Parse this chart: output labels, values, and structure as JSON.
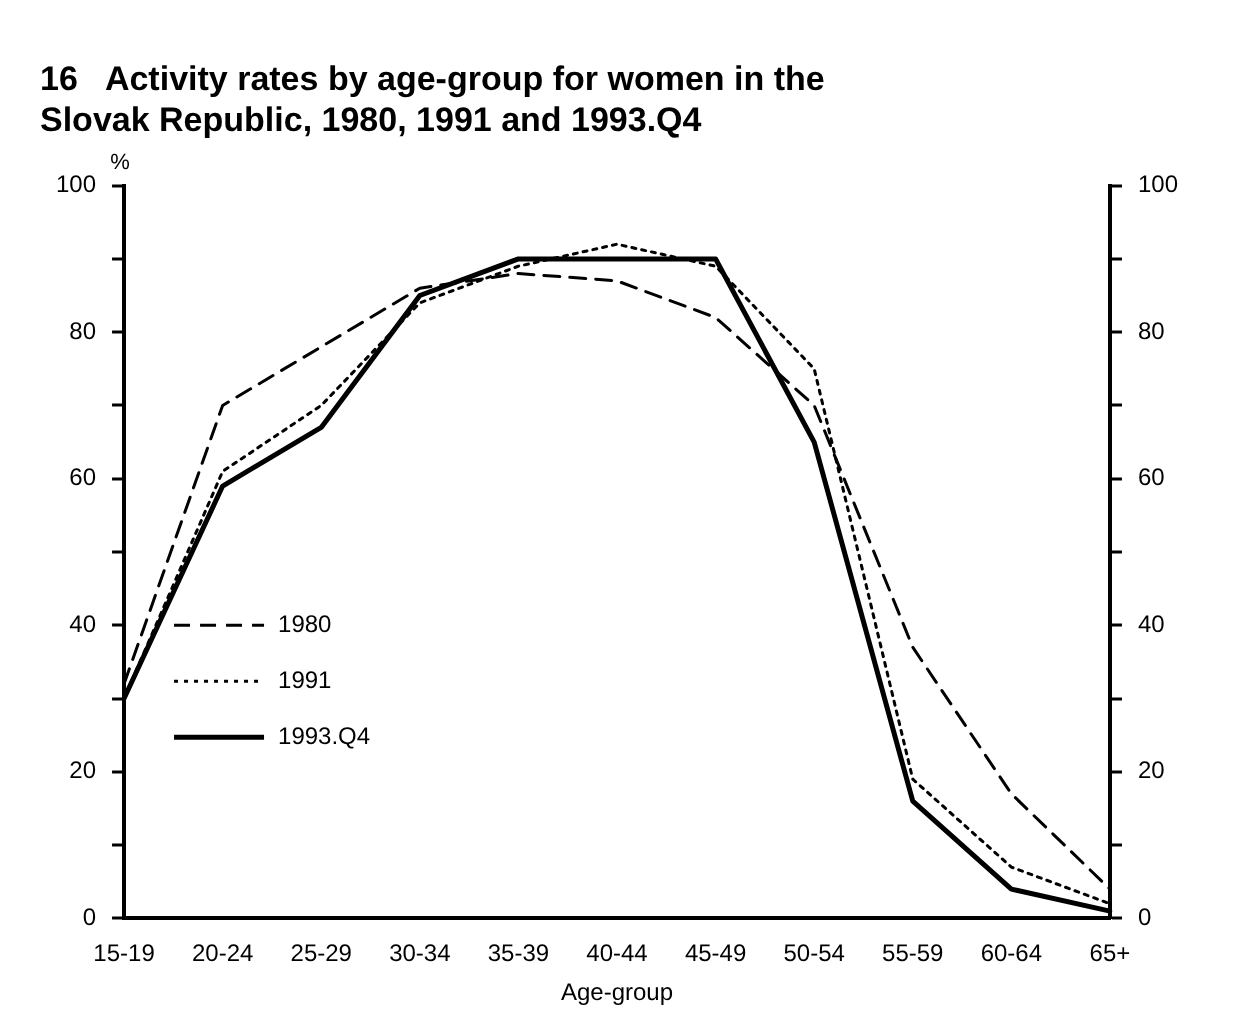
{
  "chart_data": {
    "type": "line",
    "title": "16   Activity rates by age-group for women in the Slovak Republic, 1980, 1991 and 1993.Q4",
    "xlabel": "Age-group",
    "ylabel": "%",
    "categories": [
      "15-19",
      "20-24",
      "25-29",
      "30-34",
      "35-39",
      "40-44",
      "45-49",
      "50-54",
      "55-59",
      "60-64",
      "65+"
    ],
    "series": [
      {
        "name": "1980",
        "color": "#000000",
        "line_style": "dashed",
        "values": [
          32,
          70,
          78,
          86,
          88,
          87,
          82,
          70,
          37,
          17,
          4
        ]
      },
      {
        "name": "1991",
        "color": "#000000",
        "line_style": "dotted",
        "values": [
          30,
          61,
          70,
          84,
          89,
          92,
          89,
          75,
          19,
          7,
          2
        ]
      },
      {
        "name": "1993.Q4",
        "color": "#000000",
        "line_style": "solid",
        "values": [
          30,
          59,
          67,
          85,
          90,
          90,
          90,
          65,
          16,
          4,
          1
        ]
      }
    ],
    "ylim": [
      0,
      100
    ],
    "yticks": [
      0,
      {
        "value": 10,
        "label": null
      },
      20,
      {
        "value": 30,
        "label": null
      },
      40,
      {
        "value": 50,
        "label": null
      },
      60,
      {
        "value": 70,
        "label": null
      },
      80,
      {
        "value": 90,
        "label": null
      },
      100
    ],
    "y2lim": [
      0,
      100
    ],
    "y2ticks": [
      0,
      {
        "value": 10,
        "label": null
      },
      20,
      {
        "value": 30,
        "label": null
      },
      40,
      {
        "value": 50,
        "label": null
      },
      60,
      {
        "value": 70,
        "label": null
      },
      80,
      {
        "value": 90,
        "label": null
      },
      100
    ],
    "grid": false,
    "legend": "left",
    "marker": "none"
  }
}
